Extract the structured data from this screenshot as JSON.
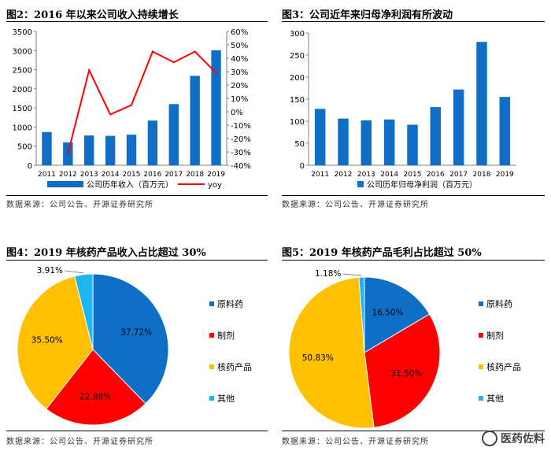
{
  "panels": {
    "p1": {
      "title": "图2：2016 年以来公司收入持续增长",
      "source": "数据来源：公司公告、开源证券研究所"
    },
    "p2": {
      "title": "图3：公司近年来归母净利润有所波动",
      "source": "数据来源：公司公告、开源证券研究所"
    },
    "p3": {
      "title": "图4：2019 年核药产品收入占比超过 30%",
      "source": "数据来源：公司公告、开源证券研究所"
    },
    "p4": {
      "title": "图5：2019 年核药产品毛利占比超过 50%",
      "source": "数据来源：公司公告、开源证券研究所"
    }
  },
  "watermark": {
    "text": "医药佐料"
  },
  "colors": {
    "blue": "#0f6fc6",
    "red": "#ff0000",
    "orange": "#ffc000",
    "cyan": "#1fb5f0",
    "axis": "#7f7f7f"
  },
  "chart_data": [
    {
      "type": "bar",
      "id": "revenue",
      "categories": [
        "2011",
        "2012",
        "2013",
        "2014",
        "2015",
        "2016",
        "2017",
        "2018",
        "2019"
      ],
      "series": [
        {
          "name": "公司历年收入（百万元）",
          "type": "bar",
          "axis": "left",
          "values": [
            870,
            600,
            780,
            770,
            800,
            1170,
            1600,
            2340,
            3010
          ]
        },
        {
          "name": "yoy",
          "type": "line",
          "axis": "right",
          "values": [
            null,
            -0.31,
            0.31,
            -0.02,
            0.05,
            0.45,
            0.37,
            0.45,
            0.29
          ]
        }
      ],
      "ylim": [
        0,
        3500
      ],
      "yticks": [
        "0",
        "500",
        "1000",
        "1500",
        "2000",
        "2500",
        "3000",
        "3500"
      ],
      "y2lim": [
        -0.4,
        0.6
      ],
      "y2ticks": [
        "-40%",
        "-30%",
        "-20%",
        "-10%",
        "0%",
        "10%",
        "20%",
        "30%",
        "40%",
        "50%",
        "60%"
      ]
    },
    {
      "type": "bar",
      "id": "profit",
      "categories": [
        "2011",
        "2012",
        "2013",
        "2014",
        "2015",
        "2016",
        "2017",
        "2018",
        "2019"
      ],
      "series": [
        {
          "name": "公司历年归母净利润（百万元）",
          "values": [
            128,
            106,
            102,
            104,
            92,
            132,
            172,
            280,
            155
          ]
        }
      ],
      "ylim": [
        0,
        300
      ],
      "yticks": [
        "0",
        "50",
        "100",
        "150",
        "200",
        "250",
        "300"
      ]
    },
    {
      "type": "pie",
      "id": "revenue-share",
      "labels": [
        "原料药",
        "制剂",
        "核药产品",
        "其他"
      ],
      "values": [
        37.72,
        22.88,
        35.5,
        3.91
      ],
      "value_labels": [
        "37.72%",
        "22.88%",
        "35.50%",
        "3.91%"
      ]
    },
    {
      "type": "pie",
      "id": "gross-profit-share",
      "labels": [
        "原料药",
        "制剂",
        "核药产品",
        "其他"
      ],
      "values": [
        16.5,
        31.5,
        50.83,
        1.18
      ],
      "value_labels": [
        "16.50%",
        "31.50%",
        "50.83%",
        "1.18%"
      ]
    }
  ]
}
